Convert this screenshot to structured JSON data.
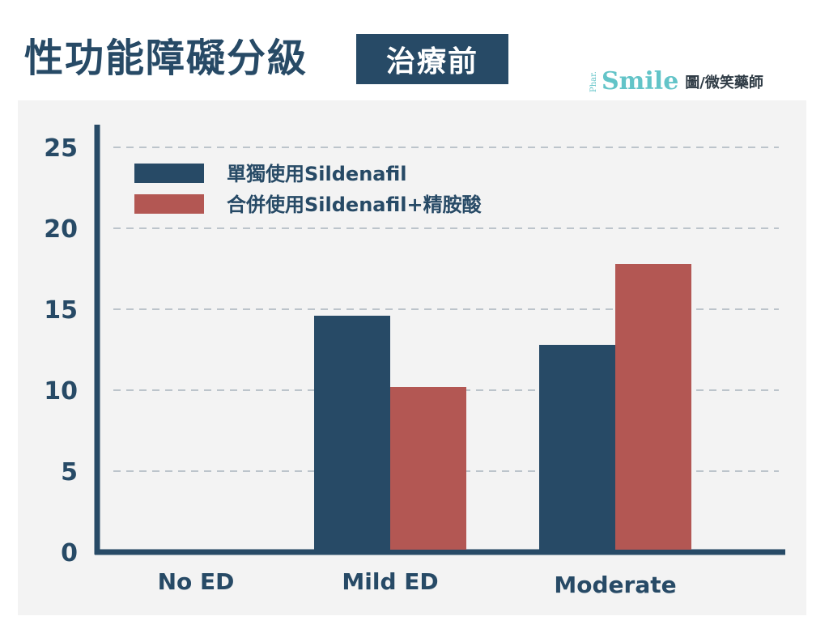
{
  "header": {
    "title": "性功能障礙分級",
    "badge": "治療前"
  },
  "brand": {
    "phar": "Phar.",
    "name": "Smile",
    "credit": "圖/微笑藥師"
  },
  "colors": {
    "navy": "#274a66",
    "red": "#b35753",
    "teal": "#63c4c8"
  },
  "chart_data": {
    "type": "bar",
    "categories": [
      "No ED",
      "Mild ED",
      "Moderate"
    ],
    "series": [
      {
        "name": "單獨使用Sildenafil",
        "color": "#274a66",
        "values": [
          0,
          14.6,
          12.8
        ]
      },
      {
        "name": "合併使用Sildenafil+精胺酸",
        "color": "#b35753",
        "values": [
          0,
          10.2,
          17.8
        ]
      }
    ],
    "ylim": [
      0,
      25
    ],
    "yticks": [
      0,
      5,
      10,
      15,
      20,
      25
    ],
    "grid": true,
    "legend": "top-left"
  }
}
